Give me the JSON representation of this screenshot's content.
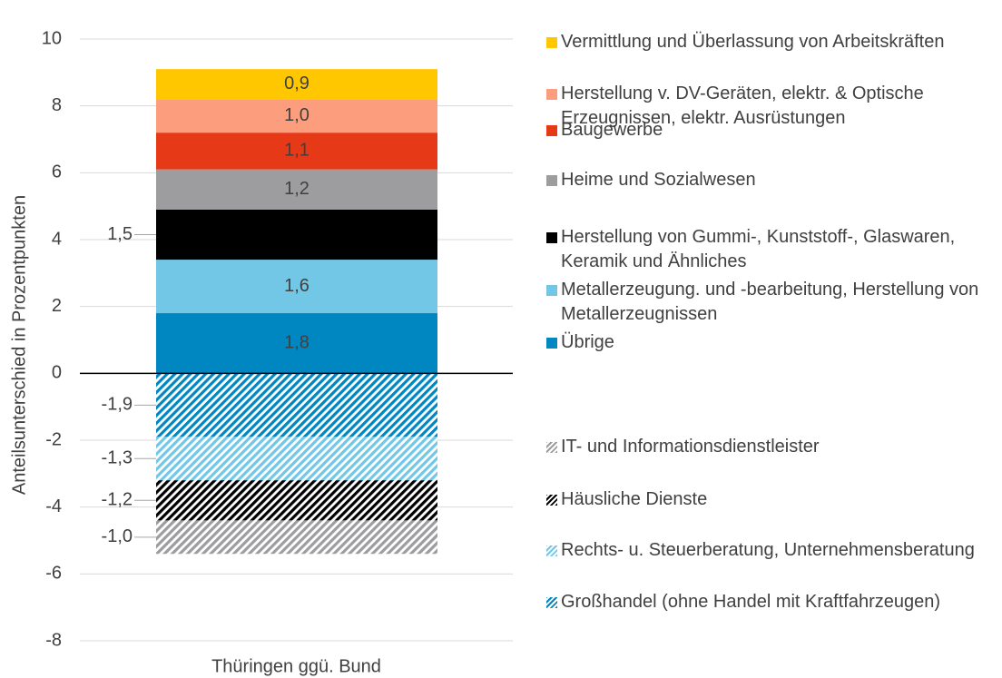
{
  "chart_data": {
    "type": "stacked_bar",
    "y_label": "Anteilsunterschied in Prozentpunkten",
    "categories": [
      "Thüringen ggü. Bund"
    ],
    "ylim": [
      -8,
      10
    ],
    "yticks": [
      -8,
      -6,
      -4,
      -2,
      0,
      2,
      4,
      6,
      8,
      10
    ],
    "grid": true,
    "series": [
      {
        "name": "Übrige",
        "color": "#0087c1",
        "values": [
          1.8
        ],
        "value_labels": [
          "1,8"
        ]
      },
      {
        "name": "Metallerzeugung. und -bearbeitung, Herstellung von Metallerzeugnissen",
        "color": "#73c7e6",
        "values": [
          1.6
        ],
        "value_labels": [
          "1,6"
        ]
      },
      {
        "name": "Herstellung von Gummi-, Kunststoff-, Glaswaren, Keramik und Ähnliches",
        "color": "#000000",
        "values": [
          1.5
        ],
        "value_labels": [
          "1,5"
        ],
        "label_position": "left"
      },
      {
        "name": "Heime und Sozialwesen",
        "color": "#9d9d9f",
        "values": [
          1.2
        ],
        "value_labels": [
          "1,2"
        ]
      },
      {
        "name": "Baugewerbe",
        "color": "#e53917",
        "values": [
          1.1
        ],
        "value_labels": [
          "1,1"
        ]
      },
      {
        "name": "Herstellung v. DV-Geräten, elektr. & Optische Erzeugnissen, elektr. Ausrüstungen",
        "color": "#fc9e7d",
        "values": [
          1.0
        ],
        "value_labels": [
          "1,0"
        ]
      },
      {
        "name": "Vermittlung und Überlassung von Arbeitskräften",
        "color": "#ffc700",
        "values": [
          0.9
        ],
        "value_labels": [
          "0,9"
        ]
      },
      {
        "name": "Großhandel (ohne Handel mit Kraftfahrzeugen)",
        "color": "#0087c1",
        "values": [
          -1.9
        ],
        "value_labels": [
          "-1,9"
        ],
        "hatched": true,
        "label_position": "left"
      },
      {
        "name": "Rechts- u. Steuerberatung, Unternehmensberatung",
        "color": "#73c7e6",
        "values": [
          -1.3
        ],
        "value_labels": [
          "-1,3"
        ],
        "hatched": true,
        "label_position": "left"
      },
      {
        "name": "Häusliche Dienste",
        "color": "#000000",
        "values": [
          -1.2
        ],
        "value_labels": [
          "-1,2"
        ],
        "hatched": true,
        "label_position": "left"
      },
      {
        "name": "IT- und Informationsdienstleister",
        "color": "#9d9d9f",
        "values": [
          -1.0
        ],
        "value_labels": [
          "-1,0"
        ],
        "hatched": true,
        "label_position": "left"
      }
    ]
  }
}
